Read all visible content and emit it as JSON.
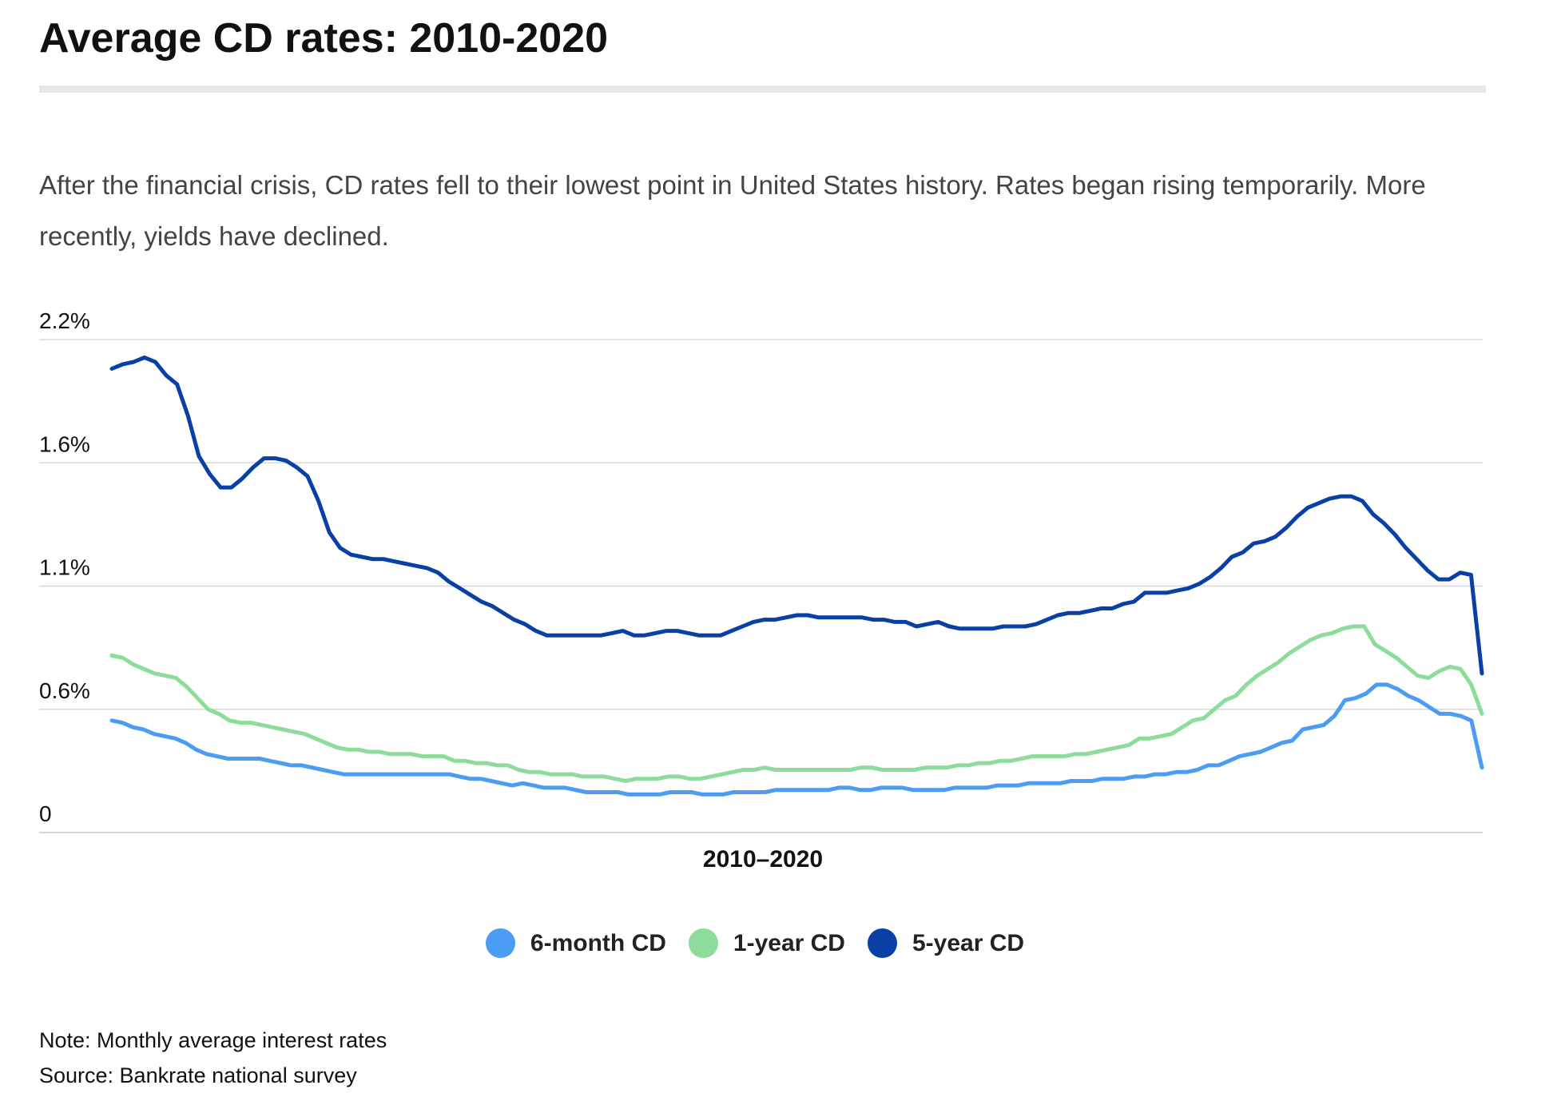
{
  "header": {
    "title": "Average CD rates: 2010-2020",
    "subtitle": "After the financial crisis, CD rates fell to their lowest point in United States history. Rates began rising temporarily. More recently, yields have declined."
  },
  "footer": {
    "note": "Note: Monthly average interest rates",
    "source": "Source: Bankrate national survey"
  },
  "colors": {
    "six_month": "#4b9cf2",
    "one_year": "#8ddc9c",
    "five_year": "#0a3fa6",
    "grid": "#d8d8d8"
  },
  "chart_data": {
    "type": "line",
    "title": "Average CD rates: 2010-2020",
    "xlabel": "2010–2020",
    "ylabel": "",
    "ylim": [
      0,
      2.2
    ],
    "yticks": [
      {
        "value": 0,
        "label": "0"
      },
      {
        "value": 0.55,
        "label": "0.6%"
      },
      {
        "value": 1.1,
        "label": "1.1%"
      },
      {
        "value": 1.65,
        "label": "1.6%"
      },
      {
        "value": 2.2,
        "label": "2.2%"
      }
    ],
    "grid": true,
    "legend_position": "bottom",
    "series": [
      {
        "name": "6-month CD",
        "values": [
          0.5,
          0.49,
          0.47,
          0.46,
          0.44,
          0.43,
          0.42,
          0.4,
          0.37,
          0.35,
          0.34,
          0.33,
          0.33,
          0.33,
          0.33,
          0.32,
          0.31,
          0.3,
          0.3,
          0.29,
          0.28,
          0.27,
          0.26,
          0.26,
          0.26,
          0.26,
          0.26,
          0.26,
          0.26,
          0.26,
          0.26,
          0.26,
          0.26,
          0.25,
          0.24,
          0.24,
          0.23,
          0.22,
          0.21,
          0.22,
          0.21,
          0.2,
          0.2,
          0.2,
          0.19,
          0.18,
          0.18,
          0.18,
          0.18,
          0.17,
          0.17,
          0.17,
          0.17,
          0.18,
          0.18,
          0.18,
          0.17,
          0.17,
          0.17,
          0.18,
          0.18,
          0.18,
          0.18,
          0.19,
          0.19,
          0.19,
          0.19,
          0.19,
          0.19,
          0.2,
          0.2,
          0.19,
          0.19,
          0.2,
          0.2,
          0.2,
          0.19,
          0.19,
          0.19,
          0.19,
          0.2,
          0.2,
          0.2,
          0.2,
          0.21,
          0.21,
          0.21,
          0.22,
          0.22,
          0.22,
          0.22,
          0.23,
          0.23,
          0.23,
          0.24,
          0.24,
          0.24,
          0.25,
          0.25,
          0.26,
          0.26,
          0.27,
          0.27,
          0.28,
          0.3,
          0.3,
          0.32,
          0.34,
          0.35,
          0.36,
          0.38,
          0.4,
          0.41,
          0.46,
          0.47,
          0.48,
          0.52,
          0.59,
          0.6,
          0.62,
          0.66,
          0.66,
          0.64,
          0.61,
          0.59,
          0.56,
          0.53,
          0.53,
          0.52,
          0.5,
          0.29
        ]
      },
      {
        "name": "1-year CD",
        "values": [
          0.79,
          0.78,
          0.75,
          0.73,
          0.71,
          0.7,
          0.69,
          0.65,
          0.6,
          0.55,
          0.53,
          0.5,
          0.49,
          0.49,
          0.48,
          0.47,
          0.46,
          0.45,
          0.44,
          0.42,
          0.4,
          0.38,
          0.37,
          0.37,
          0.36,
          0.36,
          0.35,
          0.35,
          0.35,
          0.34,
          0.34,
          0.34,
          0.32,
          0.32,
          0.31,
          0.31,
          0.3,
          0.3,
          0.28,
          0.27,
          0.27,
          0.26,
          0.26,
          0.26,
          0.25,
          0.25,
          0.25,
          0.24,
          0.23,
          0.24,
          0.24,
          0.24,
          0.25,
          0.25,
          0.24,
          0.24,
          0.25,
          0.26,
          0.27,
          0.28,
          0.28,
          0.29,
          0.28,
          0.28,
          0.28,
          0.28,
          0.28,
          0.28,
          0.28,
          0.28,
          0.29,
          0.29,
          0.28,
          0.28,
          0.28,
          0.28,
          0.29,
          0.29,
          0.29,
          0.3,
          0.3,
          0.31,
          0.31,
          0.32,
          0.32,
          0.33,
          0.34,
          0.34,
          0.34,
          0.34,
          0.35,
          0.35,
          0.36,
          0.37,
          0.38,
          0.39,
          0.42,
          0.42,
          0.43,
          0.44,
          0.47,
          0.5,
          0.51,
          0.55,
          0.59,
          0.61,
          0.66,
          0.7,
          0.73,
          0.76,
          0.8,
          0.83,
          0.86,
          0.88,
          0.89,
          0.91,
          0.92,
          0.92,
          0.84,
          0.81,
          0.78,
          0.74,
          0.7,
          0.69,
          0.72,
          0.74,
          0.73,
          0.66,
          0.53
        ]
      },
      {
        "name": "5-year CD",
        "values": [
          2.07,
          2.09,
          2.1,
          2.12,
          2.1,
          2.04,
          2.0,
          1.86,
          1.68,
          1.6,
          1.54,
          1.54,
          1.58,
          1.63,
          1.67,
          1.67,
          1.66,
          1.63,
          1.59,
          1.48,
          1.34,
          1.27,
          1.24,
          1.23,
          1.22,
          1.22,
          1.21,
          1.2,
          1.19,
          1.18,
          1.16,
          1.12,
          1.09,
          1.06,
          1.03,
          1.01,
          0.98,
          0.95,
          0.93,
          0.9,
          0.88,
          0.88,
          0.88,
          0.88,
          0.88,
          0.88,
          0.89,
          0.9,
          0.88,
          0.88,
          0.89,
          0.9,
          0.9,
          0.89,
          0.88,
          0.88,
          0.88,
          0.9,
          0.92,
          0.94,
          0.95,
          0.95,
          0.96,
          0.97,
          0.97,
          0.96,
          0.96,
          0.96,
          0.96,
          0.96,
          0.95,
          0.95,
          0.94,
          0.94,
          0.92,
          0.93,
          0.94,
          0.92,
          0.91,
          0.91,
          0.91,
          0.91,
          0.92,
          0.92,
          0.92,
          0.93,
          0.95,
          0.97,
          0.98,
          0.98,
          0.99,
          1.0,
          1.0,
          1.02,
          1.03,
          1.07,
          1.07,
          1.07,
          1.08,
          1.09,
          1.11,
          1.14,
          1.18,
          1.23,
          1.25,
          1.29,
          1.3,
          1.32,
          1.36,
          1.41,
          1.45,
          1.47,
          1.49,
          1.5,
          1.5,
          1.48,
          1.42,
          1.38,
          1.33,
          1.27,
          1.22,
          1.17,
          1.13,
          1.13,
          1.16,
          1.15,
          0.71
        ]
      }
    ]
  }
}
